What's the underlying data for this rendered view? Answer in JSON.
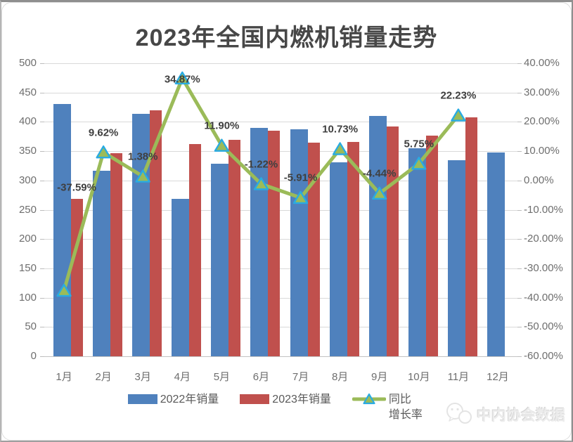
{
  "title": "2023年全国内燃机销量走势",
  "legend": [
    {
      "label": "2022年销量"
    },
    {
      "label": "2023年销量"
    },
    {
      "label": "同比\n增长率"
    }
  ],
  "watermark": {
    "text": "中内协会数据",
    "icon": "wechat-logo-icon"
  },
  "chart_data": {
    "type": "combo-bar-line",
    "title": "2023年全国内燃机销量走势",
    "categories": [
      "1月",
      "2月",
      "3月",
      "4月",
      "5月",
      "6月",
      "7月",
      "8月",
      "9月",
      "10月",
      "11月",
      "12月"
    ],
    "series": [
      {
        "name": "2022年销量",
        "type": "bar",
        "axis": "left",
        "color": "#4F81BD",
        "values": [
          431,
          317,
          414,
          268,
          329,
          390,
          387,
          331,
          410,
          355,
          334,
          348
        ]
      },
      {
        "name": "2023年销量",
        "type": "bar",
        "axis": "left",
        "color": "#C0504D",
        "values": [
          269,
          347,
          420,
          362,
          369,
          385,
          365,
          366,
          392,
          376,
          408,
          null
        ]
      },
      {
        "name": "同比增长率",
        "type": "line",
        "axis": "right",
        "color": "#9BBB59",
        "marker": "triangle",
        "marker_fill": "#9BBB59",
        "marker_border": "#29ABE2",
        "values": [
          -37.59,
          9.62,
          1.38,
          34.87,
          11.9,
          -1.22,
          -5.91,
          10.73,
          -4.44,
          5.75,
          22.23,
          null
        ],
        "point_labels": [
          "-37.59%",
          "9.62%",
          "1.38%",
          "34.87%",
          "11.90%",
          "-1.22%",
          "-5.91%",
          "10.73%",
          "-4.44%",
          "5.75%",
          "22.23%",
          null
        ]
      }
    ],
    "left_axis": {
      "min": 0,
      "max": 500,
      "step": 50,
      "tick_labels": [
        "500",
        "450",
        "400",
        "350",
        "300",
        "250",
        "200",
        "150",
        "100",
        "50",
        "0"
      ]
    },
    "right_axis": {
      "min": -60,
      "max": 40,
      "step": 10,
      "tick_labels": [
        "40.00%",
        "30.00%",
        "20.00%",
        "10.00%",
        "0.00%",
        "-10.00%",
        "-20.00%",
        "-30.00%",
        "-40.00%",
        "-50.00%",
        "-60.00%"
      ]
    },
    "grid": true,
    "legend_position": "bottom",
    "colors": {
      "grid": "#D9D9D9",
      "axis_text": "#6E6E6E",
      "data_label": "#3F3F3F",
      "title": "#474747"
    }
  }
}
